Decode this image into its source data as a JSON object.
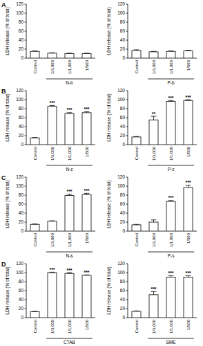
{
  "panel_labels": [
    "A",
    "B",
    "C",
    "D"
  ],
  "chart_data": [
    {
      "type": "bar",
      "xlabel": "N-b",
      "ylabel": "LDH release (% of total)",
      "categories": [
        "Control",
        "1/3,000",
        "1/1,000",
        "1/500"
      ],
      "values": [
        15,
        11,
        10,
        10
      ],
      "errors": [
        1,
        1,
        1,
        1
      ],
      "annotations": [
        null,
        null,
        null,
        null
      ],
      "color": "#ffffff",
      "ylim": [
        0,
        120
      ],
      "yticks": [
        0,
        20,
        40,
        60,
        80,
        100,
        120
      ]
    },
    {
      "type": "bar",
      "xlabel": "P-b",
      "ylabel": "LDH release (% of total)",
      "categories": [
        "Control",
        "1/3,000",
        "1/1,000",
        "1/500"
      ],
      "values": [
        17,
        14,
        15,
        16
      ],
      "errors": [
        1.5,
        1,
        1,
        1.5
      ],
      "annotations": [
        null,
        null,
        null,
        null
      ],
      "color": "#ffffff",
      "ylim": [
        0,
        120
      ],
      "yticks": [
        0,
        20,
        40,
        60,
        80,
        100,
        120
      ]
    },
    {
      "type": "bar",
      "xlabel": "N-c",
      "ylabel": "LDH release (% of total)",
      "categories": [
        "Control",
        "1/3,000",
        "1/1,000",
        "1/500"
      ],
      "values": [
        15,
        85,
        69,
        71
      ],
      "errors": [
        1,
        2,
        2,
        2
      ],
      "annotations": [
        null,
        "***",
        "***",
        "***"
      ],
      "color": "#ffffff",
      "ylim": [
        0,
        120
      ],
      "yticks": [
        0,
        20,
        40,
        60,
        80,
        100,
        120
      ]
    },
    {
      "type": "bar",
      "xlabel": "P-c",
      "ylabel": "LDH release (% of total)",
      "categories": [
        "Control",
        "1/3,000",
        "1/1,000",
        "1/500"
      ],
      "values": [
        17,
        55,
        96,
        98
      ],
      "errors": [
        1,
        8,
        2,
        2
      ],
      "annotations": [
        null,
        "**",
        "***",
        "***"
      ],
      "color": "#ffffff",
      "ylim": [
        0,
        120
      ],
      "yticks": [
        0,
        20,
        40,
        60,
        80,
        100,
        120
      ]
    },
    {
      "type": "bar",
      "xlabel": "N-s",
      "ylabel": "LDH release (% of total)",
      "categories": [
        "Control",
        "1/3,000",
        "1/1,000",
        "1/500"
      ],
      "values": [
        15,
        22,
        79,
        81
      ],
      "errors": [
        1,
        1,
        3,
        3
      ],
      "annotations": [
        null,
        null,
        "***",
        "***"
      ],
      "color": "#ffffff",
      "ylim": [
        0,
        120
      ],
      "yticks": [
        0,
        20,
        40,
        60,
        80,
        100,
        120
      ]
    },
    {
      "type": "bar",
      "xlabel": "P-s",
      "ylabel": "LDH release (% of total)",
      "categories": [
        "Control",
        "1/3,000",
        "1/1,000",
        "1/500"
      ],
      "values": [
        14,
        20,
        66,
        97
      ],
      "errors": [
        1,
        5,
        2,
        5
      ],
      "annotations": [
        null,
        null,
        "***",
        "***"
      ],
      "color": "#ffffff",
      "ylim": [
        0,
        120
      ],
      "yticks": [
        0,
        20,
        40,
        60,
        80,
        100,
        120
      ]
    },
    {
      "type": "bar",
      "xlabel": "CTAB",
      "ylabel": "LDH release (% of total)",
      "categories": [
        "Control",
        "1/3,000",
        "1/1,000",
        "1/500"
      ],
      "values": [
        13,
        100,
        98,
        94
      ],
      "errors": [
        1,
        1,
        2,
        1
      ],
      "annotations": [
        null,
        "***",
        "***",
        "***"
      ],
      "color": "#ffffff",
      "ylim": [
        0,
        120
      ],
      "yticks": [
        0,
        20,
        40,
        60,
        80,
        100,
        120
      ]
    },
    {
      "type": "bar",
      "xlabel": "SME",
      "ylabel": "LDH release (% of total)",
      "categories": [
        "Control",
        "1/3,000",
        "1/1,000",
        "1/500"
      ],
      "values": [
        14,
        51,
        90,
        90
      ],
      "errors": [
        1,
        7,
        3,
        3
      ],
      "annotations": [
        null,
        "***",
        "***",
        "***"
      ],
      "color": "#ffffff",
      "ylim": [
        0,
        120
      ],
      "yticks": [
        0,
        20,
        40,
        60,
        80,
        100,
        120
      ]
    }
  ]
}
